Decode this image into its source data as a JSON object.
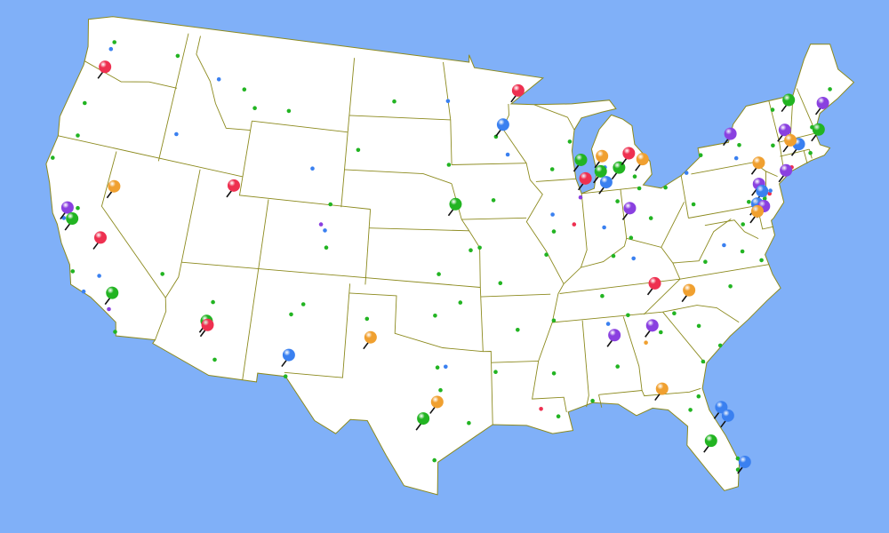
{
  "map": {
    "region": "contiguous-united-states",
    "colors": {
      "water": "#80b0f8",
      "land": "#ffffff",
      "border": "#8c8a1e",
      "red": "#ee3050",
      "orange": "#f0a030",
      "green": "#22b422",
      "blue": "#3a80f0",
      "purple": "#8a40e0"
    },
    "pins": [
      {
        "lon": -122.7,
        "lat": 45.5,
        "color": "red"
      },
      {
        "lon": -92.1,
        "lat": 46.8,
        "color": "red"
      },
      {
        "lon": -93.3,
        "lat": 45.0,
        "color": "blue"
      },
      {
        "lon": -111.9,
        "lat": 40.8,
        "color": "red"
      },
      {
        "lon": -119.8,
        "lat": 39.5,
        "color": "orange"
      },
      {
        "lon": -122.4,
        "lat": 37.8,
        "color": "purple"
      },
      {
        "lon": -121.9,
        "lat": 37.3,
        "color": "green"
      },
      {
        "lon": -119.8,
        "lat": 36.7,
        "color": "red"
      },
      {
        "lon": -118.2,
        "lat": 34.0,
        "color": "green"
      },
      {
        "lon": -112.1,
        "lat": 33.5,
        "color": "green"
      },
      {
        "lon": -112.0,
        "lat": 33.3,
        "color": "red"
      },
      {
        "lon": -106.8,
        "lat": 32.3,
        "color": "blue"
      },
      {
        "lon": -101.9,
        "lat": 33.6,
        "color": "orange"
      },
      {
        "lon": -96.7,
        "lat": 40.8,
        "color": "green"
      },
      {
        "lon": -98.5,
        "lat": 29.4,
        "color": "green"
      },
      {
        "lon": -97.7,
        "lat": 30.3,
        "color": "orange"
      },
      {
        "lon": -87.9,
        "lat": 42.9,
        "color": "green"
      },
      {
        "lon": -87.7,
        "lat": 41.9,
        "color": "red"
      },
      {
        "lon": -86.4,
        "lat": 43.0,
        "color": "orange"
      },
      {
        "lon": -86.6,
        "lat": 42.2,
        "color": "green"
      },
      {
        "lon": -85.3,
        "lat": 42.3,
        "color": "green"
      },
      {
        "lon": -86.3,
        "lat": 41.6,
        "color": "blue"
      },
      {
        "lon": -84.5,
        "lat": 43.0,
        "color": "red"
      },
      {
        "lon": -83.6,
        "lat": 42.6,
        "color": "orange"
      },
      {
        "lon": -84.9,
        "lat": 40.1,
        "color": "purple"
      },
      {
        "lon": -77.2,
        "lat": 43.2,
        "color": "purple"
      },
      {
        "lon": -72.6,
        "lat": 44.3,
        "color": "green"
      },
      {
        "lon": -70.3,
        "lat": 43.7,
        "color": "purple"
      },
      {
        "lon": -73.4,
        "lat": 42.8,
        "color": "purple"
      },
      {
        "lon": -71.1,
        "lat": 42.4,
        "color": "green"
      },
      {
        "lon": -72.7,
        "lat": 41.9,
        "color": "blue"
      },
      {
        "lon": -73.2,
        "lat": 42.2,
        "color": "orange"
      },
      {
        "lon": -75.7,
        "lat": 41.4,
        "color": "orange"
      },
      {
        "lon": -74.0,
        "lat": 40.7,
        "color": "purple"
      },
      {
        "lon": -76.0,
        "lat": 40.3,
        "color": "purple"
      },
      {
        "lon": -75.9,
        "lat": 39.9,
        "color": "blue"
      },
      {
        "lon": -76.4,
        "lat": 39.3,
        "color": "blue"
      },
      {
        "lon": -76.0,
        "lat": 39.1,
        "color": "purple"
      },
      {
        "lon": -76.5,
        "lat": 38.9,
        "color": "orange"
      },
      {
        "lon": -83.9,
        "lat": 36.0,
        "color": "red"
      },
      {
        "lon": -81.8,
        "lat": 35.4,
        "color": "orange"
      },
      {
        "lon": -86.8,
        "lat": 33.5,
        "color": "purple"
      },
      {
        "lon": -84.4,
        "lat": 33.8,
        "color": "purple"
      },
      {
        "lon": -84.3,
        "lat": 30.4,
        "color": "orange"
      },
      {
        "lon": -81.0,
        "lat": 29.0,
        "color": "blue"
      },
      {
        "lon": -80.7,
        "lat": 28.5,
        "color": "blue"
      },
      {
        "lon": -81.9,
        "lat": 27.3,
        "color": "green"
      },
      {
        "lon": -80.2,
        "lat": 25.9,
        "color": "blue"
      }
    ],
    "dots": [
      {
        "lon": -122.3,
        "lat": 47.6,
        "color": "green"
      },
      {
        "lon": -122.4,
        "lat": 47.2,
        "color": "blue"
      },
      {
        "lon": -117.4,
        "lat": 47.7,
        "color": "green"
      },
      {
        "lon": -116.2,
        "lat": 43.6,
        "color": "blue"
      },
      {
        "lon": -123.1,
        "lat": 44.05,
        "color": "green"
      },
      {
        "lon": -122.9,
        "lat": 42.3,
        "color": "green"
      },
      {
        "lon": -121.5,
        "lat": 38.6,
        "color": "green"
      },
      {
        "lon": -122.2,
        "lat": 37.9,
        "color": "blue"
      },
      {
        "lon": -119.0,
        "lat": 35.4,
        "color": "blue"
      },
      {
        "lon": -117.2,
        "lat": 32.7,
        "color": "green"
      },
      {
        "lon": -119.7,
        "lat": 34.4,
        "color": "blue"
      },
      {
        "lon": -115.1,
        "lat": 36.2,
        "color": "green"
      },
      {
        "lon": -110.9,
        "lat": 32.2,
        "color": "green"
      },
      {
        "lon": -111.6,
        "lat": 35.2,
        "color": "green"
      },
      {
        "lon": -105.0,
        "lat": 39.7,
        "color": "blue"
      },
      {
        "lon": -104.8,
        "lat": 38.8,
        "color": "green"
      },
      {
        "lon": -105.3,
        "lat": 40.0,
        "color": "purple"
      },
      {
        "lon": -108.5,
        "lat": 45.8,
        "color": "green"
      },
      {
        "lon": -111.0,
        "lat": 45.7,
        "color": "green"
      },
      {
        "lon": -114.0,
        "lat": 46.9,
        "color": "blue"
      },
      {
        "lon": -112.0,
        "lat": 46.6,
        "color": "green"
      },
      {
        "lon": -104.8,
        "lat": 41.1,
        "color": "green"
      },
      {
        "lon": -106.3,
        "lat": 42.9,
        "color": "blue"
      },
      {
        "lon": -103.2,
        "lat": 44.1,
        "color": "green"
      },
      {
        "lon": -100.8,
        "lat": 46.8,
        "color": "green"
      },
      {
        "lon": -96.8,
        "lat": 46.9,
        "color": "blue"
      },
      {
        "lon": -96.7,
        "lat": 43.5,
        "color": "green"
      },
      {
        "lon": -96.0,
        "lat": 41.3,
        "color": "green"
      },
      {
        "lon": -97.3,
        "lat": 37.7,
        "color": "green"
      },
      {
        "lon": -97.5,
        "lat": 35.5,
        "color": "green"
      },
      {
        "lon": -95.9,
        "lat": 36.2,
        "color": "green"
      },
      {
        "lon": -96.8,
        "lat": 32.8,
        "color": "blue"
      },
      {
        "lon": -97.3,
        "lat": 32.75,
        "color": "green"
      },
      {
        "lon": -95.4,
        "lat": 29.8,
        "color": "green"
      },
      {
        "lon": -97.4,
        "lat": 27.8,
        "color": "green"
      },
      {
        "lon": -106.5,
        "lat": 31.8,
        "color": "green"
      },
      {
        "lon": -101.8,
        "lat": 35.2,
        "color": "green"
      },
      {
        "lon": -105.9,
        "lat": 35.7,
        "color": "green"
      },
      {
        "lon": -94.6,
        "lat": 39.1,
        "color": "green"
      },
      {
        "lon": -90.2,
        "lat": 38.6,
        "color": "green"
      },
      {
        "lon": -93.3,
        "lat": 37.2,
        "color": "green"
      },
      {
        "lon": -92.3,
        "lat": 34.7,
        "color": "green"
      },
      {
        "lon": -90.0,
        "lat": 35.1,
        "color": "green"
      },
      {
        "lon": -90.1,
        "lat": 30.0,
        "color": "green"
      },
      {
        "lon": -91.1,
        "lat": 30.45,
        "color": "red"
      },
      {
        "lon": -90.2,
        "lat": 32.3,
        "color": "green"
      },
      {
        "lon": -88.0,
        "lat": 30.7,
        "color": "green"
      },
      {
        "lon": -86.8,
        "lat": 36.2,
        "color": "green"
      },
      {
        "lon": -85.8,
        "lat": 38.25,
        "color": "green"
      },
      {
        "lon": -84.5,
        "lat": 38.0,
        "color": "blue"
      },
      {
        "lon": -84.5,
        "lat": 39.1,
        "color": "green"
      },
      {
        "lon": -83.0,
        "lat": 40.0,
        "color": "green"
      },
      {
        "lon": -81.7,
        "lat": 41.5,
        "color": "green"
      },
      {
        "lon": -80.0,
        "lat": 40.4,
        "color": "green"
      },
      {
        "lon": -78.9,
        "lat": 42.9,
        "color": "green"
      },
      {
        "lon": -77.4,
        "lat": 37.5,
        "color": "green"
      },
      {
        "lon": -76.3,
        "lat": 36.85,
        "color": "green"
      },
      {
        "lon": -78.6,
        "lat": 35.8,
        "color": "green"
      },
      {
        "lon": -79.9,
        "lat": 32.8,
        "color": "green"
      },
      {
        "lon": -81.1,
        "lat": 32.1,
        "color": "green"
      },
      {
        "lon": -81.7,
        "lat": 30.3,
        "color": "green"
      },
      {
        "lon": -81.0,
        "lat": 34.0,
        "color": "green"
      },
      {
        "lon": -93.6,
        "lat": 41.6,
        "color": "green"
      },
      {
        "lon": -89.4,
        "lat": 43.1,
        "color": "green"
      },
      {
        "lon": -88.0,
        "lat": 44.5,
        "color": "green"
      },
      {
        "lon": -86.2,
        "lat": 39.8,
        "color": "blue"
      },
      {
        "lon": -85.1,
        "lat": 41.1,
        "color": "green"
      },
      {
        "lon": -89.6,
        "lat": 39.8,
        "color": "green"
      },
      {
        "lon": -89.6,
        "lat": 40.7,
        "color": "blue"
      },
      {
        "lon": -88.2,
        "lat": 40.1,
        "color": "red"
      },
      {
        "lon": -83.7,
        "lat": 42.3,
        "color": "green"
      },
      {
        "lon": -85.7,
        "lat": 42.96,
        "color": "blue"
      },
      {
        "lon": -83.5,
        "lat": 41.65,
        "color": "green"
      },
      {
        "lon": -80.1,
        "lat": 42.1,
        "color": "blue"
      },
      {
        "lon": -71.4,
        "lat": 41.8,
        "color": "green"
      },
      {
        "lon": -72.9,
        "lat": 41.3,
        "color": "red"
      },
      {
        "lon": -74.8,
        "lat": 40.2,
        "color": "red"
      },
      {
        "lon": -74.7,
        "lat": 40.35,
        "color": "blue"
      },
      {
        "lon": -75.5,
        "lat": 39.7,
        "color": "green"
      },
      {
        "lon": -76.3,
        "lat": 40.0,
        "color": "green"
      },
      {
        "lon": -76.1,
        "lat": 43.05,
        "color": "green"
      },
      {
        "lon": -76.5,
        "lat": 42.4,
        "color": "blue"
      },
      {
        "lon": -85.3,
        "lat": 35.05,
        "color": "green"
      },
      {
        "lon": -86.6,
        "lat": 34.7,
        "color": "blue"
      },
      {
        "lon": -86.3,
        "lat": 32.4,
        "color": "green"
      },
      {
        "lon": -82.3,
        "lat": 29.65,
        "color": "green"
      },
      {
        "lon": -80.05,
        "lat": 26.7,
        "color": "green"
      },
      {
        "lon": -80.15,
        "lat": 26.1,
        "color": "green"
      },
      {
        "lon": -93.3,
        "lat": 44.97,
        "color": "green"
      },
      {
        "lon": -92.5,
        "lat": 44.0,
        "color": "blue"
      },
      {
        "lon": -95.2,
        "lat": 38.97,
        "color": "green"
      },
      {
        "lon": -97.1,
        "lat": 31.55,
        "color": "green"
      },
      {
        "lon": -93.75,
        "lat": 32.5,
        "color": "green"
      },
      {
        "lon": -83.4,
        "lat": 33.95,
        "color": "green"
      },
      {
        "lon": -82.4,
        "lat": 34.85,
        "color": "green"
      },
      {
        "lon": -79.9,
        "lat": 37.3,
        "color": "green"
      },
      {
        "lon": -78.5,
        "lat": 38.0,
        "color": "blue"
      },
      {
        "lon": -73.8,
        "lat": 42.65,
        "color": "green"
      },
      {
        "lon": -73.2,
        "lat": 44.5,
        "color": "green"
      },
      {
        "lon": -70.8,
        "lat": 43.1,
        "color": "green"
      },
      {
        "lon": -68.8,
        "lat": 44.8,
        "color": "green"
      },
      {
        "lon": -69.8,
        "lat": 44.3,
        "color": "green"
      },
      {
        "lon": -106.6,
        "lat": 35.1,
        "color": "green"
      },
      {
        "lon": -117.9,
        "lat": 33.8,
        "color": "purple"
      },
      {
        "lon": -120.7,
        "lat": 35.3,
        "color": "green"
      },
      {
        "lon": -124.1,
        "lat": 40.8,
        "color": "green"
      },
      {
        "lon": -75.2,
        "lat": 40.0,
        "color": "green"
      },
      {
        "lon": -77.0,
        "lat": 38.9,
        "color": "green"
      },
      {
        "lon": -87.6,
        "lat": 41.5,
        "color": "purple"
      },
      {
        "lon": -84.4,
        "lat": 33.5,
        "color": "orange"
      }
    ]
  }
}
